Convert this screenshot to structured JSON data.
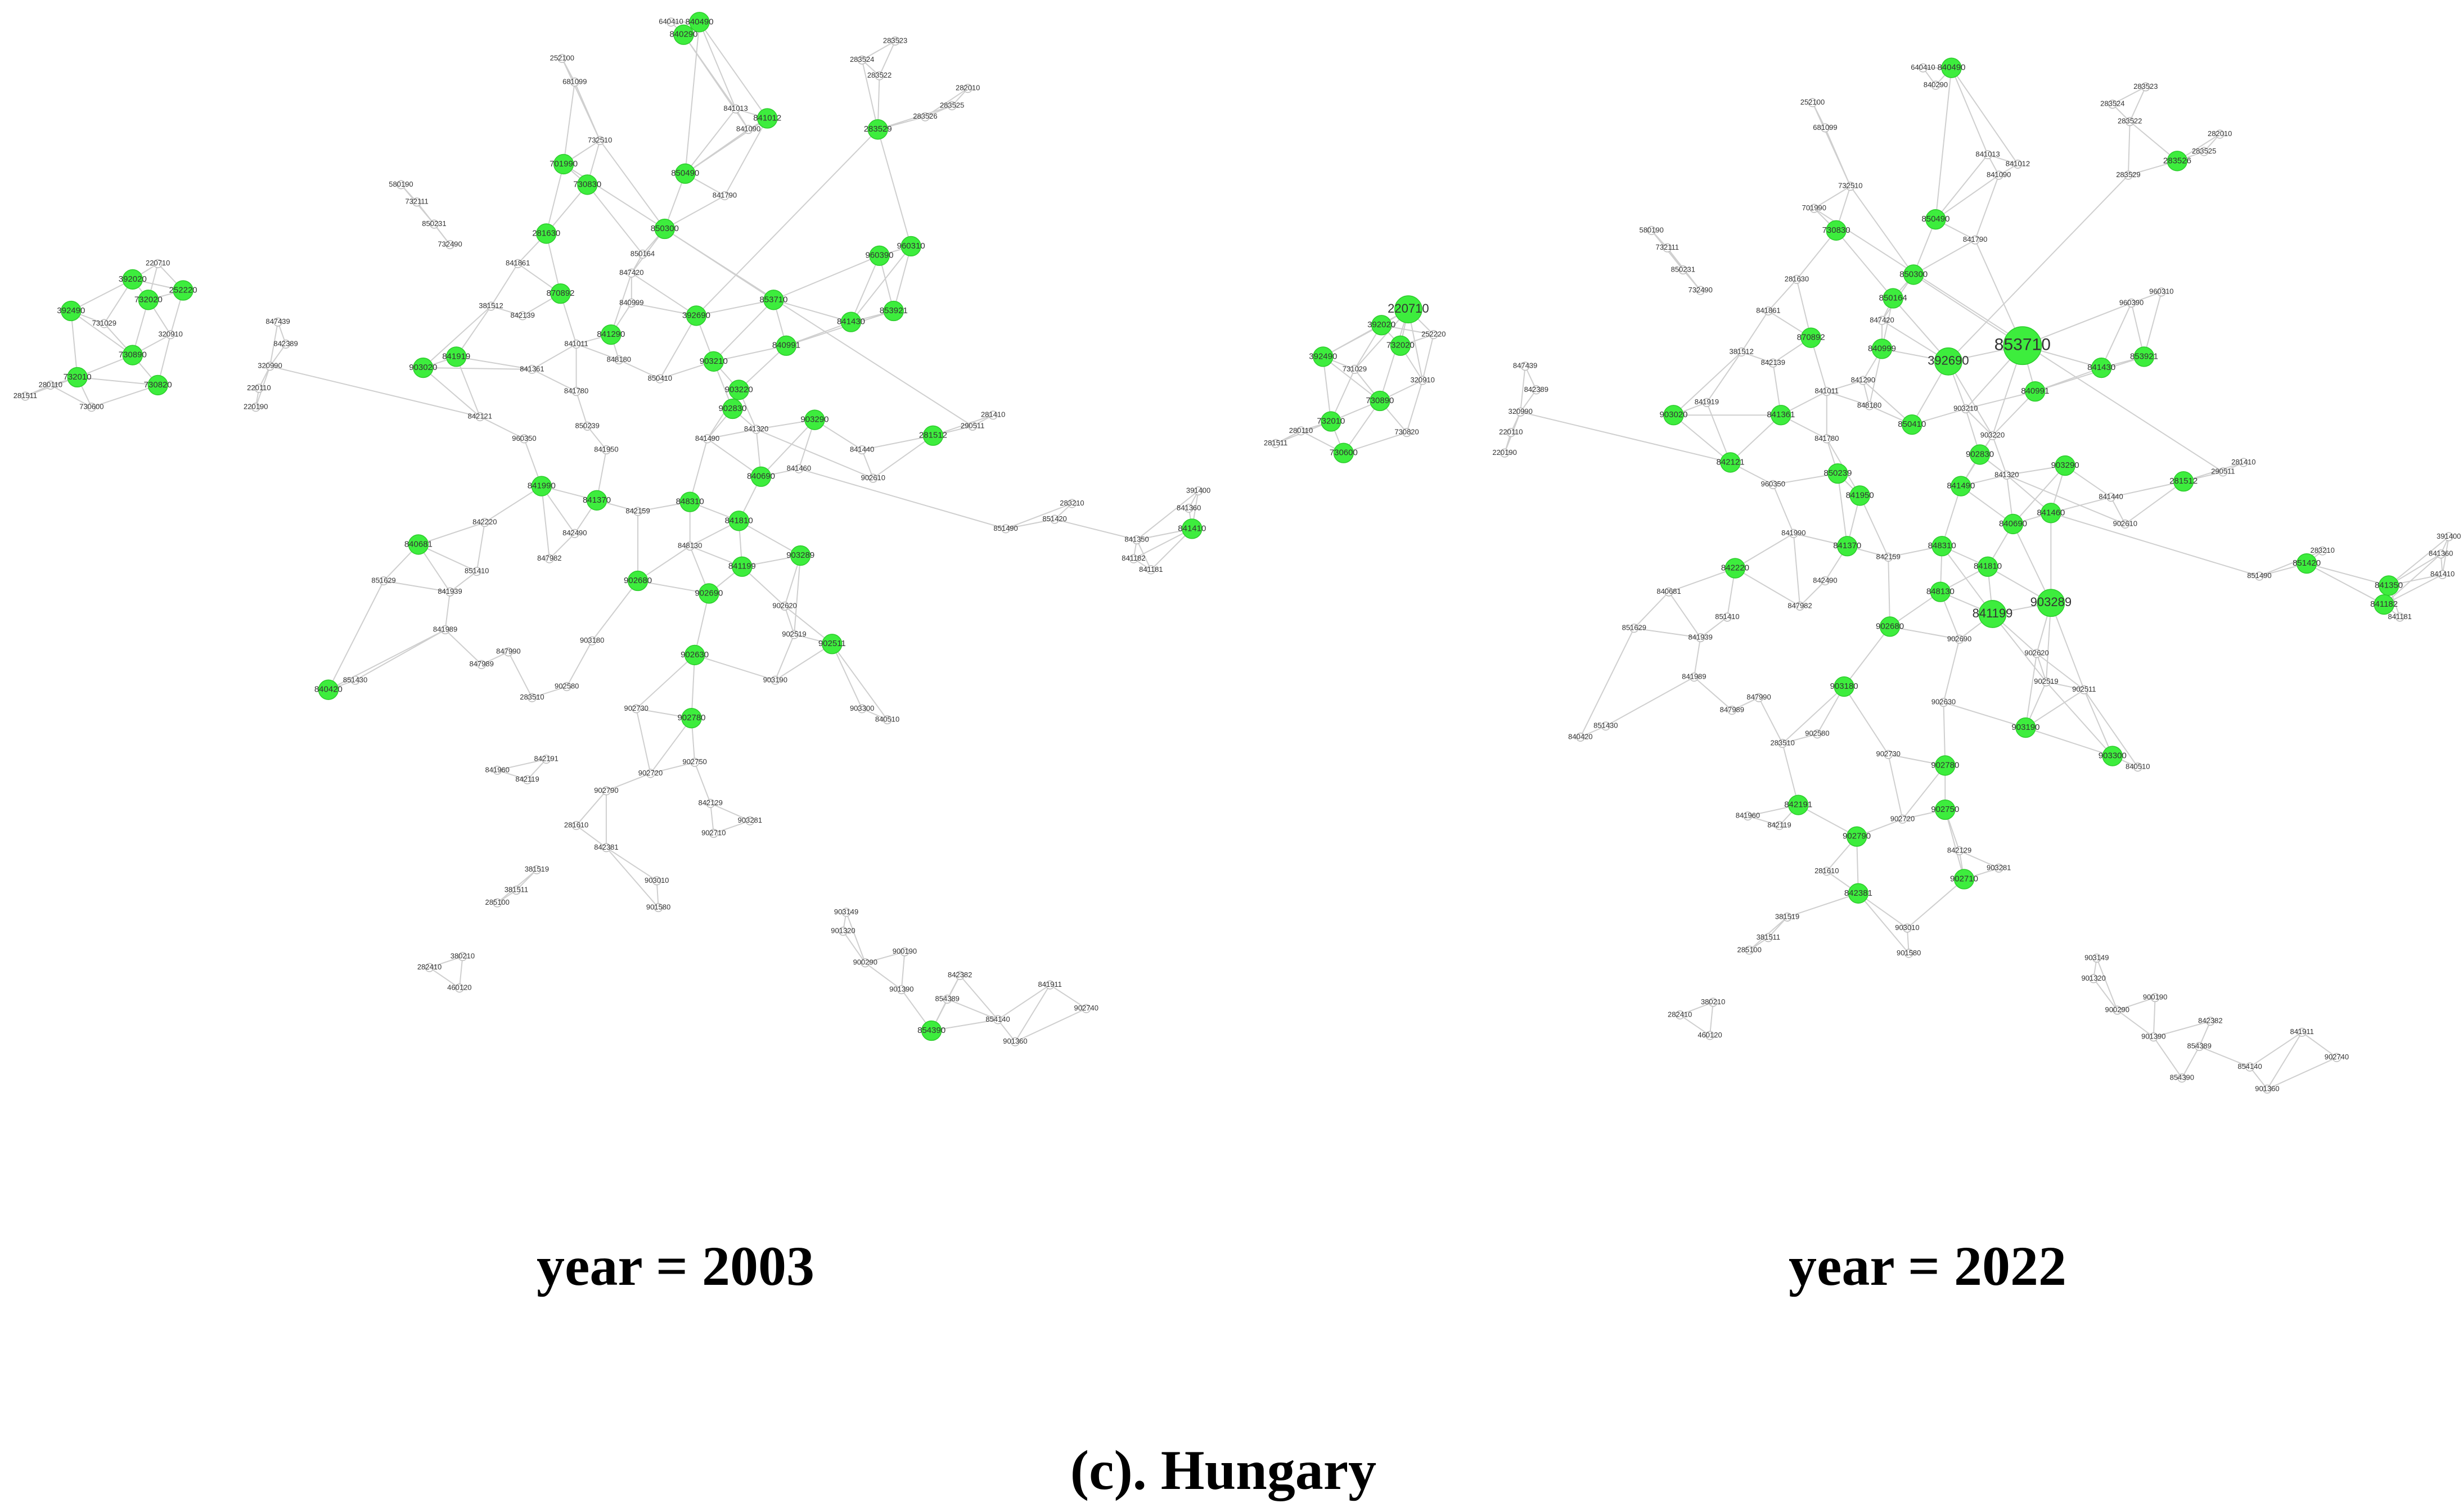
{
  "panels": [
    {
      "title": "year = 2003",
      "nodes": [
        "640410",
        "840290",
        "840490",
        "252100",
        "681099",
        "732510",
        "580190",
        "732111",
        "850231",
        "732490",
        "841861",
        "381512",
        "842139",
        "841011",
        "841361",
        "841780",
        "842121",
        "960350",
        "850239",
        "841950",
        "848180",
        "840999",
        "847420",
        "850164",
        "850410",
        "841490",
        "841320",
        "841440",
        "841460",
        "902610",
        "842159",
        "842490",
        "848130",
        "847982",
        "842220",
        "851410",
        "841939",
        "851629",
        "841989",
        "847990",
        "847989",
        "903180",
        "283510",
        "902580",
        "902730",
        "903190",
        "902519",
        "902620",
        "903300",
        "840510",
        "851430",
        "842191",
        "841960",
        "842119",
        "902720",
        "902750",
        "902790",
        "842129",
        "903281",
        "902710",
        "281610",
        "842381",
        "381519",
        "381511",
        "285100",
        "903010",
        "901580",
        "380210",
        "282410",
        "460120",
        "903149",
        "901320",
        "900190",
        "900290",
        "842382",
        "854389",
        "901390",
        "841911",
        "902740",
        "854140",
        "901360",
        "854390",
        "851490",
        "851420",
        "283210",
        "841350",
        "841182",
        "841181",
        "391400",
        "841360",
        "841410",
        "283523",
        "283524",
        "283522",
        "283525",
        "283526",
        "282010",
        "283529",
        "841013",
        "841090",
        "841012",
        "841790",
        "281410",
        "290511",
        "281512",
        "701990",
        "730830",
        "281630",
        "850490",
        "850300",
        "960390",
        "960310",
        "392690",
        "853710",
        "841430",
        "853921",
        "840991",
        "903210",
        "903220",
        "902830",
        "903290",
        "840690",
        "841810",
        "841199",
        "903289",
        "902511",
        "848310",
        "841370",
        "841990",
        "840420",
        "840681",
        "902680",
        "902690",
        "902630",
        "902780",
        "841919",
        "903020",
        "870892",
        "841290",
        "220710",
        "392020",
        "732020",
        "252220",
        "392490",
        "731029",
        "320910",
        "730890",
        "732010",
        "730820",
        "280110",
        "281511",
        "730600",
        "847439",
        "842389",
        "320990",
        "220110",
        "220190"
      ]
    },
    {
      "title": "year = 2022",
      "nodes": [
        "640410",
        "840290",
        "840490",
        "252100",
        "681099",
        "732510",
        "580190",
        "732111",
        "850231",
        "732490",
        "841861",
        "381512",
        "842139",
        "841011",
        "841361",
        "841780",
        "842121",
        "960350",
        "850239",
        "841950",
        "848180",
        "840999",
        "847420",
        "850164",
        "850410",
        "841490",
        "841320",
        "841440",
        "841460",
        "902610",
        "842159",
        "842490",
        "848130",
        "847982",
        "842220",
        "851410",
        "841939",
        "851629",
        "841989",
        "847990",
        "847989",
        "903180",
        "283510",
        "902580",
        "902730",
        "903190",
        "902519",
        "902620",
        "903300",
        "840510",
        "851430",
        "842191",
        "841960",
        "842119",
        "902720",
        "902750",
        "902790",
        "842129",
        "903281",
        "902710",
        "281610",
        "842381",
        "381519",
        "381511",
        "285100",
        "903010",
        "901580",
        "380210",
        "282410",
        "460120",
        "903149",
        "901320",
        "900190",
        "900290",
        "842382",
        "854389",
        "901390",
        "841911",
        "902740",
        "854140",
        "901360",
        "854390",
        "851490",
        "851420",
        "283210",
        "841350",
        "841182",
        "841181",
        "391400",
        "841360",
        "841410",
        "283523",
        "283524",
        "283522",
        "283525",
        "283526",
        "282010",
        "283529",
        "841013",
        "841090",
        "841012",
        "841790",
        "281410",
        "290511",
        "281512",
        "701990",
        "730830",
        "281630",
        "850490",
        "850300",
        "960390",
        "960310",
        "392690",
        "853710",
        "841430",
        "853921",
        "840991",
        "903210",
        "903220",
        "902830",
        "903290",
        "840690",
        "841810",
        "841199",
        "903289",
        "902511",
        "848310",
        "841370",
        "841990",
        "840420",
        "840681",
        "902680",
        "902690",
        "902630",
        "902780",
        "841919",
        "903020",
        "870892",
        "841290",
        "220710",
        "392020",
        "732020",
        "252220",
        "392490",
        "731029",
        "320910",
        "730890",
        "732010",
        "730820",
        "280110",
        "281511",
        "730600",
        "847439",
        "842389",
        "320990",
        "220110",
        "220190"
      ]
    }
  ],
  "caption": "(c). Hungary"
}
